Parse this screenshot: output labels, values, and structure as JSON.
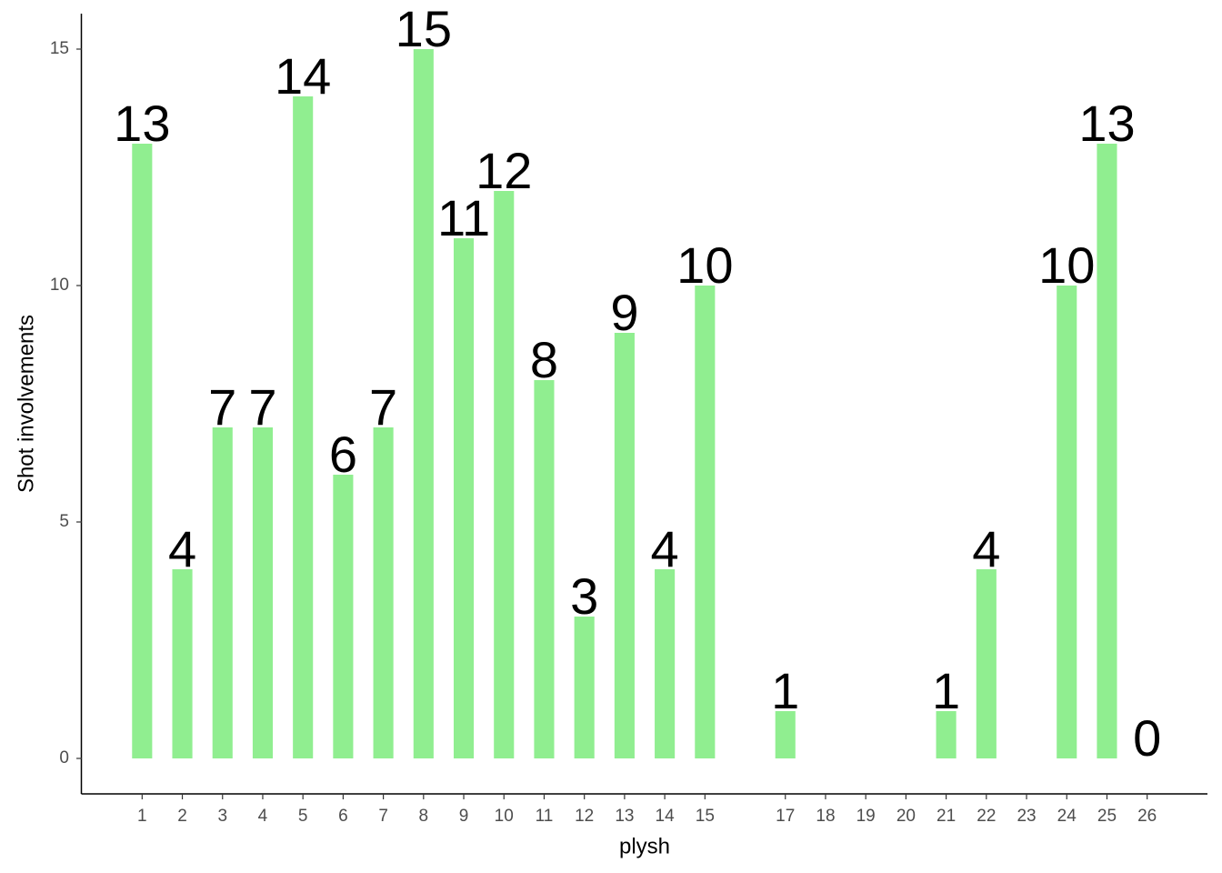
{
  "chart_data": {
    "type": "bar",
    "xlabel": "plysh",
    "ylabel": "Shot involvements",
    "x": [
      1,
      2,
      3,
      4,
      5,
      6,
      7,
      8,
      9,
      10,
      11,
      12,
      13,
      14,
      15,
      17,
      21,
      22,
      24,
      25,
      26
    ],
    "values": [
      13,
      4,
      7,
      7,
      14,
      6,
      7,
      15,
      11,
      12,
      8,
      3,
      9,
      4,
      10,
      1,
      1,
      4,
      10,
      13,
      0
    ],
    "color": "#90ee90",
    "xlim": [
      -0.5,
      27.5
    ],
    "xticks": [
      1,
      2,
      3,
      4,
      5,
      6,
      7,
      8,
      9,
      10,
      11,
      12,
      13,
      14,
      15,
      17,
      18,
      19,
      20,
      21,
      22,
      23,
      24,
      25,
      26
    ],
    "ylim": [
      -0.75,
      15.75
    ],
    "yticks": [
      0,
      5,
      10,
      15
    ],
    "grid": false
  }
}
